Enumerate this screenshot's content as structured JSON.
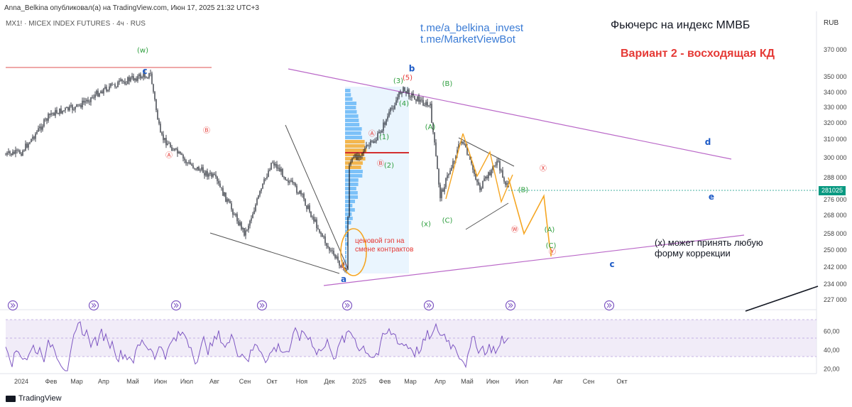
{
  "header": {
    "publisher_line": "Anna_Belkina опубликовал(а) на TradingView.com, Июн 17, 2025 21:32 UTC+3",
    "symbol_line": "MX1! · MICEX INDEX FUTURES · 4ч · RUS"
  },
  "annotations": {
    "telegram_1": "t.me/a_belkina_invest",
    "telegram_2": "t.me/MarketViewBot",
    "title": "Фьючерс на индекс ММВБ",
    "subtitle": "Вариант 2 - восходящая КД",
    "correction_note": "(x) может принять любую форму коррекции",
    "gap_note": "ценовой гэп на смене контрактов"
  },
  "price_axis": {
    "currency": "RUB",
    "current_price": "281025"
  },
  "footer": {
    "logo": "TradingView"
  },
  "colors": {
    "candle": "#131722",
    "rsi": "#7e57c2",
    "trendline": "#ba68c8",
    "forecast": "#f5a623",
    "wave_red": "#e53935",
    "wave_green": "#2e9e3e",
    "wave_blue": "#1e5bc6",
    "volume_profile": "#2196f3",
    "current_price": "#089981"
  },
  "chart_data": [
    {
      "type": "line",
      "subtype": "candlestick",
      "ylim": [
        227000,
        378000
      ],
      "y_ticks": [
        370000,
        350000,
        340000,
        330000,
        320000,
        310000,
        300000,
        288000,
        276000,
        268000,
        258000,
        250000,
        242000,
        234000,
        227000
      ],
      "x_ticks": [
        "2024",
        "Фев",
        "Мар",
        "Апр",
        "Май",
        "Июн",
        "Июл",
        "Авг",
        "Сен",
        "Окт",
        "Ноя",
        "Дек",
        "2025",
        "Фев",
        "Мар",
        "Апр",
        "Май",
        "Июн",
        "Июл",
        "Авг",
        "Сен",
        "Окт"
      ],
      "series": [
        {
          "x": [
            "2024",
            "Фев",
            "Мар",
            "Апр",
            "Май",
            "Июн",
            "Июл",
            "Авг",
            "Сен",
            "Окт",
            "Ноя",
            "Дек",
            "2025",
            "Фев",
            "Мар",
            "Апр",
            "Май",
            "Июн"
          ],
          "values": [
            303000,
            326000,
            330000,
            342000,
            349000,
            312000,
            297000,
            288000,
            258000,
            298000,
            278000,
            250000,
            297000,
            310000,
            342000,
            278000,
            305000,
            281025
          ]
        }
      ],
      "forecast_path": {
        "x": [
          "Июн",
          "Июл",
          "Июл",
          "Июл",
          "Авг",
          "Авг"
        ],
        "values": [
          288000,
          258000,
          278000,
          252000,
          250000,
          247000
        ]
      },
      "wave_labels": [
        {
          "text": "(w)",
          "color": "green",
          "x": "Май",
          "y": 368000
        },
        {
          "text": "c",
          "color": "blue",
          "x": "Май",
          "y": 352000
        },
        {
          "text": "Ⓐ",
          "color": "red",
          "x": "Май",
          "y": 300000
        },
        {
          "text": "Ⓑ",
          "color": "red",
          "x": "Июн",
          "y": 314000
        },
        {
          "text": "Ⓒ",
          "color": "red",
          "x": "Дек",
          "y": 241000
        },
        {
          "text": "a",
          "color": "blue",
          "x": "Дек",
          "y": 235000
        },
        {
          "text": "Ⓐ",
          "color": "red",
          "x": "2025",
          "y": 312000
        },
        {
          "text": "Ⓑ",
          "color": "red",
          "x": "2025",
          "y": 295000
        },
        {
          "text": "(1)",
          "color": "green",
          "x": "Фев",
          "y": 310000
        },
        {
          "text": "(2)",
          "color": "green",
          "x": "Фев",
          "y": 294000
        },
        {
          "text": "(3)",
          "color": "green",
          "x": "Фев",
          "y": 346000
        },
        {
          "text": "(4)",
          "color": "green",
          "x": "Фев",
          "y": 331000
        },
        {
          "text": "(5)",
          "color": "red",
          "x": "Фев",
          "y": 348000
        },
        {
          "text": "b",
          "color": "blue",
          "x": "Фев",
          "y": 354000
        },
        {
          "text": "(A)",
          "color": "green",
          "x": "Мар",
          "y": 316000
        },
        {
          "text": "(B)",
          "color": "green",
          "x": "Мар",
          "y": 344000
        },
        {
          "text": "(C)",
          "color": "green",
          "x": "Апр",
          "y": 264000
        },
        {
          "text": "Ⓦ",
          "color": "red",
          "x": "Апр",
          "y": 259000
        },
        {
          "text": "Ⓧ",
          "color": "red",
          "x": "Июн",
          "y": 292000
        },
        {
          "text": "(B)",
          "color": "green",
          "x": "Июл",
          "y": 280000
        },
        {
          "text": "(A)",
          "color": "green",
          "x": "Июл",
          "y": 259000
        },
        {
          "text": "(C)",
          "color": "green",
          "x": "Июл",
          "y": 251000
        },
        {
          "text": "Ⓨ",
          "color": "red",
          "x": "Июл",
          "y": 248000
        },
        {
          "text": "c",
          "color": "blue",
          "x": "Июл",
          "y": 242000
        },
        {
          "text": "d",
          "color": "blue",
          "x": "Сен",
          "y": 307000
        },
        {
          "text": "e",
          "color": "blue",
          "x": "Окт",
          "y": 276000
        },
        {
          "text": "(x)",
          "color": "green",
          "x": "Окт",
          "y": 262000
        }
      ]
    },
    {
      "type": "line",
      "subtype": "oscillator",
      "ylim": [
        15,
        80
      ],
      "y_ticks": [
        "60,00",
        "40,00",
        "20,00"
      ]
    }
  ]
}
